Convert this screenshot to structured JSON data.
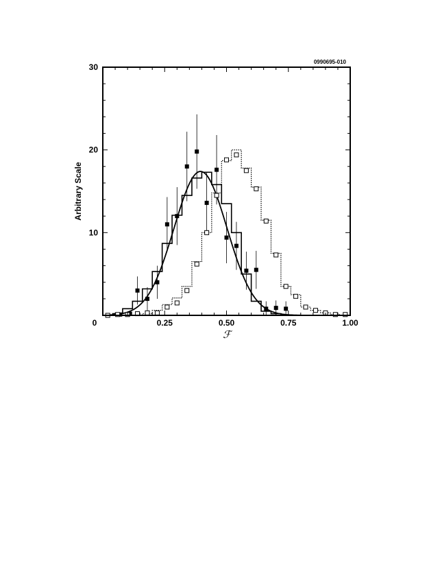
{
  "chart_data": {
    "type": "line",
    "figure_code": "0990695-010",
    "xlabel": "ℱ",
    "ylabel": "Arbitrary  Scale",
    "xlim": [
      0,
      1.0
    ],
    "ylim": [
      0,
      30
    ],
    "x_ticks": [
      "0",
      "0.25",
      "0.50",
      "0.75",
      "1.00"
    ],
    "y_ticks": [
      "10",
      "20",
      "30"
    ],
    "bin_width": 0.04,
    "series": [
      {
        "kind": "histogram-solid",
        "bin_starts": [
          0.04,
          0.08,
          0.12,
          0.16,
          0.2,
          0.24,
          0.28,
          0.32,
          0.36,
          0.4,
          0.44,
          0.48,
          0.52,
          0.56,
          0.6,
          0.64,
          0.68
        ],
        "values": [
          0.2,
          0.8,
          1.7,
          3.2,
          5.3,
          8.7,
          12.1,
          14.5,
          16.6,
          17.3,
          15.8,
          13.5,
          10.0,
          5.0,
          1.7,
          0.5,
          0.2
        ]
      },
      {
        "kind": "gaussian-fit",
        "peak": 17.4,
        "mean": 0.395,
        "sigma": 0.107
      },
      {
        "kind": "points-filled",
        "x": [
          0.07,
          0.11,
          0.14,
          0.18,
          0.22,
          0.26,
          0.3,
          0.34,
          0.38,
          0.42,
          0.46,
          0.5,
          0.54,
          0.58,
          0.62,
          0.66,
          0.7,
          0.74
        ],
        "y": [
          0.1,
          0.2,
          3.0,
          2.0,
          4.0,
          11.0,
          12.0,
          18.0,
          19.8,
          13.6,
          17.6,
          9.4,
          8.4,
          5.4,
          5.5,
          0.8,
          0.9,
          0.8
        ],
        "err": [
          0.1,
          0.2,
          1.7,
          1.4,
          2.0,
          3.3,
          3.5,
          4.2,
          4.5,
          3.7,
          4.2,
          3.1,
          2.9,
          2.3,
          2.3,
          0.9,
          0.9,
          0.9
        ]
      },
      {
        "kind": "histogram-dotted",
        "bin_starts": [
          0.16,
          0.2,
          0.24,
          0.28,
          0.32,
          0.36,
          0.4,
          0.44,
          0.48,
          0.52,
          0.56,
          0.6,
          0.64,
          0.68,
          0.72,
          0.76,
          0.8,
          0.84,
          0.88,
          0.92
        ],
        "values": [
          0.2,
          0.6,
          1.3,
          2.1,
          3.5,
          6.5,
          10.0,
          14.8,
          18.7,
          20.0,
          17.8,
          15.5,
          11.5,
          7.5,
          3.5,
          2.5,
          1.0,
          0.6,
          0.3,
          0.1
        ]
      },
      {
        "kind": "points-open",
        "x": [
          0.02,
          0.06,
          0.1,
          0.14,
          0.18,
          0.22,
          0.26,
          0.3,
          0.34,
          0.38,
          0.42,
          0.46,
          0.5,
          0.54,
          0.58,
          0.62,
          0.66,
          0.7,
          0.74,
          0.78,
          0.82,
          0.86,
          0.9,
          0.94,
          0.98
        ],
        "y": [
          0.0,
          0.1,
          0.1,
          0.2,
          0.3,
          0.3,
          1.0,
          1.5,
          3.0,
          6.2,
          10.0,
          14.5,
          18.8,
          19.4,
          17.5,
          15.3,
          11.4,
          7.3,
          3.5,
          2.3,
          1.0,
          0.6,
          0.3,
          0.1,
          0.1
        ]
      }
    ]
  }
}
